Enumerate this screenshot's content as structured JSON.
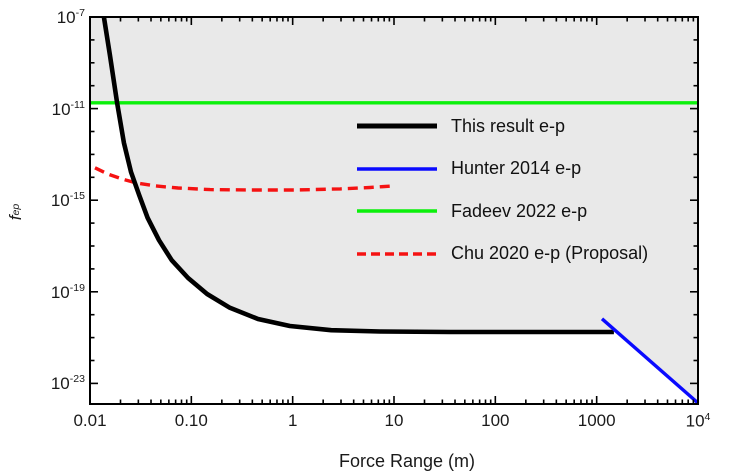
{
  "figure": {
    "background_color": "#ffffff",
    "frame_color": "#000000",
    "text_color": "#1a1a1a"
  },
  "chart_data": {
    "type": "line",
    "title": "",
    "xlabel": "Force Range (m)",
    "ylabel_base": "f",
    "ylabel_sup": "ep",
    "x_scale": "log",
    "y_scale": "log",
    "xlim": [
      0.01,
      10000
    ],
    "ylim": [
      1.26e-24,
      1e-07
    ],
    "grid": false,
    "x_ticks": [
      {
        "value": 0.01,
        "label": "0.01"
      },
      {
        "value": 0.1,
        "label": "0.10"
      },
      {
        "value": 1,
        "label": "1"
      },
      {
        "value": 10,
        "label": "10"
      },
      {
        "value": 100,
        "label": "100"
      },
      {
        "value": 1000,
        "label": "1000"
      },
      {
        "value": 10000,
        "label": "10^4"
      }
    ],
    "y_ticks": [
      {
        "value": 1e-07,
        "label": "10^-7"
      },
      {
        "value": 1e-11,
        "label": "10^-11"
      },
      {
        "value": 1e-15,
        "label": "10^-15"
      },
      {
        "value": 1e-19,
        "label": "10^-19"
      },
      {
        "value": 1e-23,
        "label": "10^-23"
      }
    ],
    "shaded_region": {
      "color": "#e9e9e9",
      "meaning": "excluded region above the experimental limit curves (black, green and blue lines)"
    },
    "series": [
      {
        "name": "This result e-p",
        "color": "#000000",
        "style": "solid",
        "line_width": 4.6,
        "points": [
          [
            0.0137,
            1e-07
          ],
          [
            0.0157,
            2.2e-09
          ],
          [
            0.0185,
            1.8e-11
          ],
          [
            0.0216,
            3.2e-13
          ],
          [
            0.0254,
            1.7e-14
          ],
          [
            0.0305,
            1.7e-15
          ],
          [
            0.037,
            1.7e-16
          ],
          [
            0.048,
            1.8e-17
          ],
          [
            0.064,
            2.4e-18
          ],
          [
            0.093,
            4e-19
          ],
          [
            0.143,
            8e-20
          ],
          [
            0.24,
            2e-20
          ],
          [
            0.455,
            6.5e-21
          ],
          [
            0.94,
            3.2e-21
          ],
          [
            2.4,
            2.1e-21
          ],
          [
            7.3,
            1.85e-21
          ],
          [
            36,
            1.75e-21
          ],
          [
            1480,
            1.75e-21
          ]
        ]
      },
      {
        "name": "Hunter 2014 e-p",
        "color": "#0a0aff",
        "style": "solid",
        "line_width": 3.4,
        "points": [
          [
            1130,
            6.6e-21
          ],
          [
            10000,
            1.4e-24
          ]
        ]
      },
      {
        "name": "Fadeev 2022 e-p",
        "color": "#0bf00b",
        "style": "solid",
        "line_width": 3.4,
        "points": [
          [
            0.01,
            1.8e-11
          ],
          [
            10000,
            1.8e-11
          ]
        ]
      },
      {
        "name": "Chu 2020 e-p (Proposal)",
        "color": "#f51212",
        "style": "dashed",
        "line_width": 3.4,
        "points": [
          [
            0.0112,
            2.6e-14
          ],
          [
            0.015,
            1.4e-14
          ],
          [
            0.0207,
            8.4e-15
          ],
          [
            0.029,
            5.6e-15
          ],
          [
            0.044,
            4.2e-15
          ],
          [
            0.074,
            3.4e-15
          ],
          [
            0.153,
            2.9e-15
          ],
          [
            0.38,
            2.8e-15
          ],
          [
            1.05,
            2.8e-15
          ],
          [
            2.95,
            3.1e-15
          ],
          [
            5.8,
            3.6e-15
          ],
          [
            9.8,
            4.2e-15
          ]
        ]
      }
    ],
    "legend": {
      "position": "upper-right-inside",
      "frame": false
    }
  }
}
